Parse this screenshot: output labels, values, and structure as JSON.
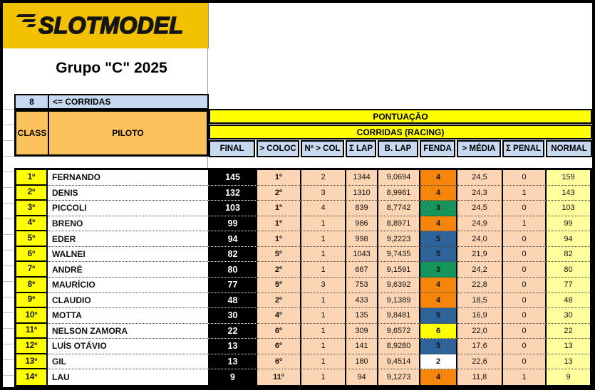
{
  "banner": {
    "logo_text": "SLOTMODEL"
  },
  "title": "Grupo \"C\" 2025",
  "corridas": {
    "count": "8",
    "label": "<= CORRIDAS"
  },
  "colors": {
    "banner_yellow": "#F2C101",
    "header_orange": "#FCC35C",
    "header_blue": "#C6D9F1",
    "row_peach": "#FCD5B4",
    "normal_yellow": "#FFFF9E",
    "class_yellow": "#FFFF00",
    "final_black": "#000000",
    "fenda": {
      "orange": "#F5860B",
      "green": "#15945B",
      "blue": "#2F649B",
      "yellow": "#FFFF00",
      "white": "#FFFFFF"
    }
  },
  "table": {
    "class_header": "CLASS",
    "pilot_header": "PILOTO",
    "group_header": "PONTUAÇÃO",
    "subgroup_header": "CORRIDAS (RACING)",
    "columns": [
      "FINAL",
      "> COLOC",
      "Nº > COL",
      "Σ LAP",
      "B. LAP",
      "FENDA",
      "> MÉDIA",
      "Σ PENAL",
      "NORMAL"
    ],
    "rows": [
      {
        "class": "1º",
        "pilot": "FERNANDO",
        "final": "145",
        "coloc": "1º",
        "ncol": "2",
        "lap": "1344",
        "blap": "9,0694",
        "fenda": "4",
        "fenda_color": "orange",
        "media": "24,5",
        "penal": "0",
        "normal": "159"
      },
      {
        "class": "2º",
        "pilot": "DENIS",
        "final": "132",
        "coloc": "2º",
        "ncol": "3",
        "lap": "1310",
        "blap": "8,9981",
        "fenda": "4",
        "fenda_color": "orange",
        "media": "24,3",
        "penal": "1",
        "normal": "143"
      },
      {
        "class": "3º",
        "pilot": "PICCOLI",
        "final": "103",
        "coloc": "1º",
        "ncol": "4",
        "lap": "839",
        "blap": "8,7742",
        "fenda": "3",
        "fenda_color": "green",
        "media": "24,5",
        "penal": "0",
        "normal": "103"
      },
      {
        "class": "4º",
        "pilot": "BRENO",
        "final": "99",
        "coloc": "1º",
        "ncol": "1",
        "lap": "986",
        "blap": "8,8971",
        "fenda": "4",
        "fenda_color": "orange",
        "media": "24,9",
        "penal": "1",
        "normal": "99"
      },
      {
        "class": "5º",
        "pilot": "EDER",
        "final": "94",
        "coloc": "1º",
        "ncol": "1",
        "lap": "998",
        "blap": "9,2223",
        "fenda": "5",
        "fenda_color": "blue",
        "media": "24,0",
        "penal": "0",
        "normal": "94"
      },
      {
        "class": "6º",
        "pilot": "WALNEI",
        "final": "82",
        "coloc": "5º",
        "ncol": "1",
        "lap": "1043",
        "blap": "9,7435",
        "fenda": "5",
        "fenda_color": "blue",
        "media": "21,9",
        "penal": "0",
        "normal": "82"
      },
      {
        "class": "7º",
        "pilot": "ANDRÉ",
        "final": "80",
        "coloc": "2º",
        "ncol": "1",
        "lap": "667",
        "blap": "9,1591",
        "fenda": "3",
        "fenda_color": "green",
        "media": "24,2",
        "penal": "0",
        "normal": "80"
      },
      {
        "class": "8º",
        "pilot": "MAURÍCIO",
        "final": "77",
        "coloc": "5º",
        "ncol": "3",
        "lap": "753",
        "blap": "9,6392",
        "fenda": "4",
        "fenda_color": "orange",
        "media": "22,8",
        "penal": "0",
        "normal": "77"
      },
      {
        "class": "9º",
        "pilot": "CLAUDIO",
        "final": "48",
        "coloc": "2º",
        "ncol": "1",
        "lap": "433",
        "blap": "9,1389",
        "fenda": "4",
        "fenda_color": "orange",
        "media": "18,5",
        "penal": "0",
        "normal": "48"
      },
      {
        "class": "10º",
        "pilot": "MOTTA",
        "final": "30",
        "coloc": "4º",
        "ncol": "1",
        "lap": "135",
        "blap": "9,8481",
        "fenda": "5",
        "fenda_color": "blue",
        "media": "16,9",
        "penal": "0",
        "normal": "30"
      },
      {
        "class": "11º",
        "pilot": "NELSON ZAMORA",
        "final": "22",
        "coloc": "6º",
        "ncol": "1",
        "lap": "309",
        "blap": "9,6572",
        "fenda": "6",
        "fenda_color": "yellow",
        "media": "22,0",
        "penal": "0",
        "normal": "22"
      },
      {
        "class": "12º",
        "pilot": "LUÍS OTÁVIO",
        "final": "13",
        "coloc": "6º",
        "ncol": "1",
        "lap": "141",
        "blap": "8,9280",
        "fenda": "5",
        "fenda_color": "blue",
        "media": "17,6",
        "penal": "0",
        "normal": "13"
      },
      {
        "class": "13º",
        "pilot": "GIL",
        "final": "13",
        "coloc": "6º",
        "ncol": "1",
        "lap": "180",
        "blap": "9,4514",
        "fenda": "2",
        "fenda_color": "white",
        "media": "22,6",
        "penal": "0",
        "normal": "13"
      },
      {
        "class": "14º",
        "pilot": "LAU",
        "final": "9",
        "coloc": "11º",
        "ncol": "1",
        "lap": "94",
        "blap": "9,1273",
        "fenda": "4",
        "fenda_color": "orange",
        "media": "11,8",
        "penal": "1",
        "normal": "9"
      }
    ]
  }
}
